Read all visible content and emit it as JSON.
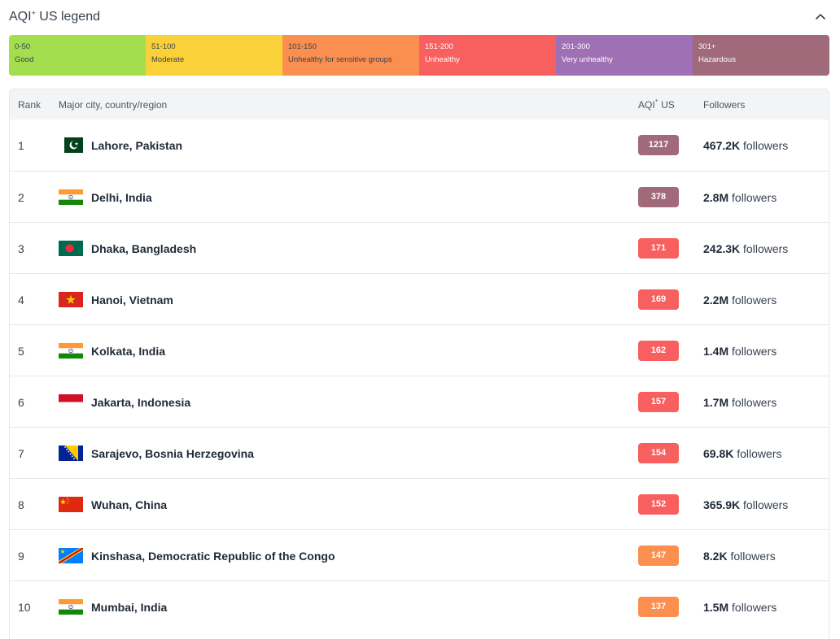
{
  "legend": {
    "title": "AQI",
    "title_sup": "+",
    "title_suffix": " US legend",
    "segments": [
      {
        "range": "0-50",
        "label": "Good",
        "color": "#a3de4f",
        "text_color": "#374151"
      },
      {
        "range": "51-100",
        "label": "Moderate",
        "color": "#fbd13a",
        "text_color": "#374151"
      },
      {
        "range": "101-150",
        "label": "Unhealthy for sensitive groups",
        "color": "#fb8f4f",
        "text_color": "#374151"
      },
      {
        "range": "151-200",
        "label": "Unhealthy",
        "color": "#f8605f",
        "text_color": "#ffffff"
      },
      {
        "range": "201-300",
        "label": "Very unhealthy",
        "color": "#a070b5",
        "text_color": "#ffffff"
      },
      {
        "range": "301+",
        "label": "Hazardous",
        "color": "#a06a7b",
        "text_color": "#ffffff"
      }
    ]
  },
  "table": {
    "headers": {
      "rank": "Rank",
      "city": "Major city, country/region",
      "aqi": "AQI",
      "aqi_sup": "+",
      "aqi_suffix": " US",
      "followers": "Followers"
    },
    "followers_word": "followers",
    "rows": [
      {
        "rank": "1",
        "city": "Lahore, Pakistan",
        "flag": "pakistan-flag-icon",
        "aqi": "1217",
        "color": "#a06a7b",
        "followers": "467.2K"
      },
      {
        "rank": "2",
        "city": "Delhi, India",
        "flag": "india-flag-icon",
        "aqi": "378",
        "color": "#a06a7b",
        "followers": "2.8M"
      },
      {
        "rank": "3",
        "city": "Dhaka, Bangladesh",
        "flag": "bangladesh-flag-icon",
        "aqi": "171",
        "color": "#f8605f",
        "followers": "242.3K"
      },
      {
        "rank": "4",
        "city": "Hanoi, Vietnam",
        "flag": "vietnam-flag-icon",
        "aqi": "169",
        "color": "#f8605f",
        "followers": "2.2M"
      },
      {
        "rank": "5",
        "city": "Kolkata, India",
        "flag": "india-flag-icon",
        "aqi": "162",
        "color": "#f8605f",
        "followers": "1.4M"
      },
      {
        "rank": "6",
        "city": "Jakarta, Indonesia",
        "flag": "indonesia-flag-icon",
        "aqi": "157",
        "color": "#f8605f",
        "followers": "1.7M"
      },
      {
        "rank": "7",
        "city": "Sarajevo, Bosnia Herzegovina",
        "flag": "bosnia-flag-icon",
        "aqi": "154",
        "color": "#f8605f",
        "followers": "69.8K"
      },
      {
        "rank": "8",
        "city": "Wuhan, China",
        "flag": "china-flag-icon",
        "aqi": "152",
        "color": "#f8605f",
        "followers": "365.9K"
      },
      {
        "rank": "9",
        "city": "Kinshasa, Democratic Republic of the Congo",
        "flag": "drc-flag-icon",
        "aqi": "147",
        "color": "#fb8f4f",
        "followers": "8.2K"
      },
      {
        "rank": "10",
        "city": "Mumbai, India",
        "flag": "india-flag-icon",
        "aqi": "137",
        "color": "#fb8f4f",
        "followers": "1.5M"
      }
    ]
  }
}
